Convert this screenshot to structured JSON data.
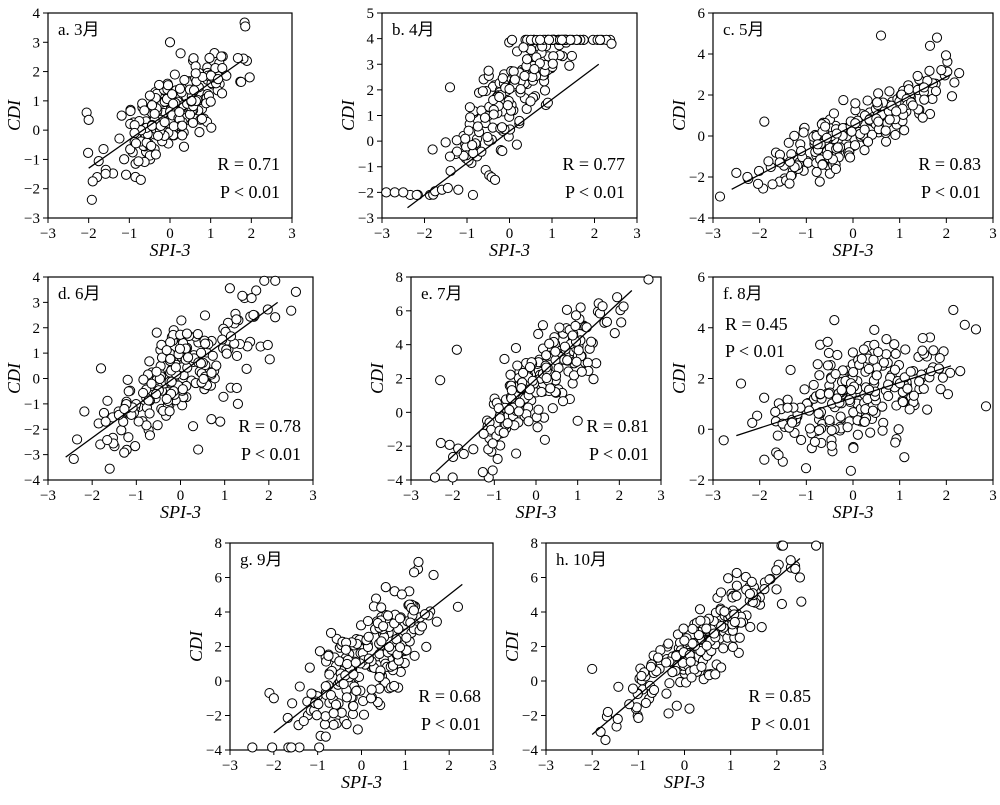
{
  "chart_data": [
    {
      "type": "scatter",
      "panel_label": "a. 3月",
      "xlabel": "SPI-3",
      "ylabel": "CDI",
      "xlim": [
        -3,
        3
      ],
      "ylim": [
        -3,
        4
      ],
      "xticks": [
        "−3",
        "−2",
        "−1",
        "0",
        "1",
        "2",
        "3"
      ],
      "yticks": [
        "−3",
        "−2",
        "−1",
        "0",
        "1",
        "2",
        "3",
        "4"
      ],
      "r_text": "R = 0.71",
      "p_text": "P < 0.01",
      "fit": {
        "x": [
          -2.0,
          1.8
        ],
        "y": [
          -1.3,
          2.4
        ]
      },
      "points": {
        "x_mean": 0.1,
        "x_sd": 0.75,
        "slope": 0.97,
        "intercept": 0.6,
        "noise_sd": 0.65,
        "n": 230,
        "seed": 11,
        "extra": [
          [
            -2.05,
            0.6
          ],
          [
            -2.0,
            0.35
          ],
          [
            -1.9,
            -1.75
          ],
          [
            0.0,
            3.0
          ]
        ]
      }
    },
    {
      "type": "scatter",
      "panel_label": "b. 4月",
      "xlabel": "SPI-3",
      "ylabel": "CDI",
      "xlim": [
        -3,
        3
      ],
      "ylim": [
        -3,
        5
      ],
      "xticks": [
        "−3",
        "−2",
        "−1",
        "0",
        "1",
        "2",
        "3"
      ],
      "yticks": [
        "−3",
        "−2",
        "−1",
        "0",
        "1",
        "2",
        "3",
        "4",
        "5"
      ],
      "r_text": "R = 0.77",
      "p_text": "P < 0.01",
      "fit": {
        "x": [
          -2.4,
          2.1
        ],
        "y": [
          -2.6,
          3.0
        ]
      },
      "points": {
        "x_mean": 0.1,
        "x_sd": 0.9,
        "slope": 1.9,
        "intercept": 1.8,
        "noise_sd": 0.9,
        "n": 230,
        "seed": 23,
        "ymax": 3.95,
        "ymin": -2.1,
        "extra": [
          [
            -2.9,
            -2.0
          ],
          [
            -2.7,
            -2.0
          ],
          [
            -2.5,
            -2.0
          ],
          [
            -1.4,
            2.1
          ],
          [
            2.4,
            3.8
          ]
        ]
      }
    },
    {
      "type": "scatter",
      "panel_label": "c. 5月",
      "xlabel": "SPI-3",
      "ylabel": "CDI",
      "xlim": [
        -3,
        3
      ],
      "ylim": [
        -4,
        6
      ],
      "xticks": [
        "−3",
        "−2",
        "−1",
        "0",
        "1",
        "2",
        "3"
      ],
      "yticks": [
        "−4",
        "−2",
        "0",
        "2",
        "4",
        "6"
      ],
      "r_text": "R = 0.83",
      "p_text": "P < 0.01",
      "fit": {
        "x": [
          -2.6,
          2.1
        ],
        "y": [
          -2.6,
          3.0
        ]
      },
      "points": {
        "x_mean": 0.0,
        "x_sd": 0.95,
        "slope": 1.2,
        "intercept": 0.3,
        "noise_sd": 0.7,
        "n": 230,
        "seed": 37,
        "extra": [
          [
            0.6,
            4.9
          ],
          [
            1.8,
            4.8
          ],
          [
            1.65,
            4.4
          ],
          [
            -1.9,
            0.7
          ],
          [
            -2.5,
            -1.8
          ]
        ]
      }
    },
    {
      "type": "scatter",
      "panel_label": "d. 6月",
      "xlabel": "SPI-3",
      "ylabel": "CDI",
      "xlim": [
        -3,
        3
      ],
      "ylim": [
        -4,
        4
      ],
      "xticks": [
        "−3",
        "−2",
        "−1",
        "0",
        "1",
        "2",
        "3"
      ],
      "yticks": [
        "−4",
        "−3",
        "−2",
        "−1",
        "0",
        "1",
        "2",
        "3",
        "4"
      ],
      "r_text": "R = 0.78",
      "p_text": "P < 0.01",
      "fit": {
        "x": [
          -2.6,
          2.2
        ],
        "y": [
          -3.1,
          3.0
        ]
      },
      "points": {
        "x_mean": 0.0,
        "x_sd": 1.0,
        "slope": 1.25,
        "intercept": 0.2,
        "noise_sd": 0.85,
        "n": 230,
        "seed": 41,
        "extra": [
          [
            0.4,
            -2.8
          ],
          [
            1.3,
            -1.0
          ],
          [
            0.7,
            -1.6
          ],
          [
            0.9,
            -1.7
          ],
          [
            -1.8,
            0.4
          ]
        ]
      }
    },
    {
      "type": "scatter",
      "panel_label": "e. 7月",
      "xlabel": "SPI-3",
      "ylabel": "CDI",
      "xlim": [
        -3,
        3
      ],
      "ylim": [
        -4,
        8
      ],
      "xticks": [
        "−3",
        "−2",
        "−1",
        "0",
        "1",
        "2",
        "3"
      ],
      "yticks": [
        "−4",
        "−2",
        "0",
        "2",
        "4",
        "6",
        "8"
      ],
      "r_text": "R = 0.81",
      "p_text": "P < 0.01",
      "fit": {
        "x": [
          -2.4,
          2.3
        ],
        "y": [
          -3.5,
          7.2
        ]
      },
      "points": {
        "x_mean": 0.1,
        "x_sd": 0.95,
        "slope": 2.2,
        "intercept": 1.6,
        "noise_sd": 1.3,
        "n": 230,
        "seed": 53,
        "extra": [
          [
            -1.9,
            3.7
          ],
          [
            -2.3,
            1.9
          ],
          [
            1.0,
            -0.5
          ],
          [
            1.1,
            2.4
          ]
        ]
      }
    },
    {
      "type": "scatter",
      "panel_label": "f. 8月",
      "xlabel": "SPI-3",
      "ylabel": "CDI",
      "xlim": [
        -3,
        3
      ],
      "ylim": [
        -2,
        6
      ],
      "xticks": [
        "−3",
        "−2",
        "−1",
        "0",
        "1",
        "2",
        "3"
      ],
      "yticks": [
        "−2",
        "0",
        "2",
        "4",
        "6"
      ],
      "r_text": "R = 0.45",
      "p_text": "P < 0.01",
      "fit": {
        "x": [
          -2.5,
          2.1
        ],
        "y": [
          -0.25,
          2.5
        ]
      },
      "points": {
        "x_mean": 0.0,
        "x_sd": 0.95,
        "slope": 0.6,
        "intercept": 1.1,
        "noise_sd": 1.0,
        "n": 230,
        "seed": 67,
        "extra": [
          [
            -0.4,
            4.3
          ],
          [
            2.15,
            4.7
          ],
          [
            -2.4,
            1.8
          ],
          [
            1.1,
            -1.1
          ],
          [
            -1.9,
            -1.2
          ]
        ]
      }
    },
    {
      "type": "scatter",
      "panel_label": "g. 9月",
      "xlabel": "SPI-3",
      "ylabel": "CDI",
      "xlim": [
        -3,
        3
      ],
      "ylim": [
        -4,
        8
      ],
      "xticks": [
        "−3",
        "−2",
        "−1",
        "0",
        "1",
        "2",
        "3"
      ],
      "yticks": [
        "−4",
        "−2",
        "0",
        "2",
        "4",
        "6",
        "8"
      ],
      "r_text": "R = 0.68",
      "p_text": "P < 0.01",
      "fit": {
        "x": [
          -2.0,
          2.3
        ],
        "y": [
          -3.0,
          5.6
        ]
      },
      "points": {
        "x_mean": 0.0,
        "x_sd": 0.8,
        "slope": 2.0,
        "intercept": 1.0,
        "noise_sd": 1.5,
        "n": 230,
        "seed": 79,
        "extra": [
          [
            -2.1,
            -0.7
          ],
          [
            -2.0,
            -1.0
          ],
          [
            2.2,
            4.3
          ],
          [
            1.3,
            6.9
          ],
          [
            1.2,
            6.3
          ]
        ]
      }
    },
    {
      "type": "scatter",
      "panel_label": "h. 10月",
      "xlabel": "SPI-3",
      "ylabel": "CDI",
      "xlim": [
        -3,
        3
      ],
      "ylim": [
        -4,
        8
      ],
      "xticks": [
        "−3",
        "−2",
        "−1",
        "0",
        "1",
        "2",
        "3"
      ],
      "yticks": [
        "−4",
        "−2",
        "0",
        "2",
        "4",
        "6",
        "8"
      ],
      "r_text": "R = 0.85",
      "p_text": "P < 0.01",
      "fit": {
        "x": [
          -2.0,
          2.5
        ],
        "y": [
          -3.1,
          7.1
        ]
      },
      "points": {
        "x_mean": 0.2,
        "x_sd": 0.95,
        "slope": 2.3,
        "intercept": 1.4,
        "noise_sd": 1.1,
        "n": 230,
        "seed": 97,
        "extra": [
          [
            -2.0,
            0.7
          ],
          [
            2.5,
            6.0
          ],
          [
            2.3,
            7.0
          ],
          [
            2.4,
            6.5
          ]
        ]
      }
    }
  ]
}
